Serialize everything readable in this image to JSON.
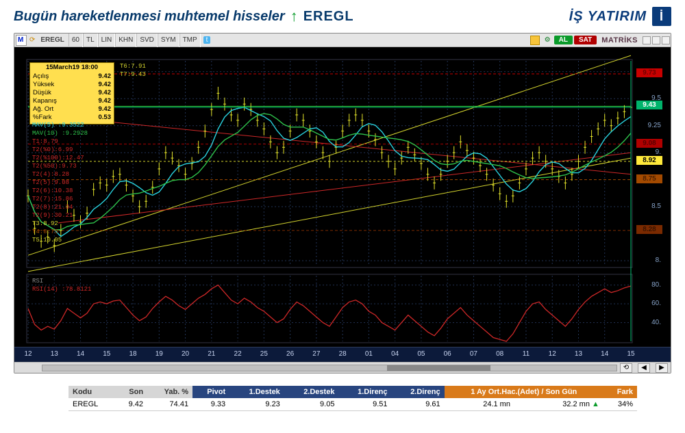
{
  "header": {
    "title": "Bugün hareketlenmesi muhtemel hisseler",
    "ticker": "EREGL",
    "brand": "İŞ YATIRIM"
  },
  "toolbar": {
    "symbol": "EREGL",
    "buttons": [
      "60",
      "TL",
      "LIN",
      "KHN",
      "SVD",
      "SYM",
      "TMP"
    ],
    "al": "AL",
    "sat": "SAT",
    "matriks": "MATRİKS"
  },
  "ohlc": {
    "datetime": "15March19 18:00",
    "rows": [
      [
        "Açılış",
        "9.42"
      ],
      [
        "Yüksek",
        "9.42"
      ],
      [
        "Düşük",
        "9.42"
      ],
      [
        "Kapanış",
        "9.42"
      ],
      [
        "Ağ. Ort",
        "9.42"
      ],
      [
        "%Fark",
        "0.53"
      ]
    ]
  },
  "topIndicators": [
    {
      "text": "T6:7.91",
      "color": "#d6d62e"
    },
    {
      "text": "T7:9.43",
      "color": "#d6d62e"
    }
  ],
  "leftIndicators": [
    {
      "text": "MAV(5)   :9.3522",
      "color": "#29d3e0"
    },
    {
      "text": "MAV(10)  :9.2928",
      "color": "#2ec24b"
    },
    {
      "text": "T1:8.79",
      "color": "#d02828"
    },
    {
      "text": "T2(%0):6.99",
      "color": "#d02828"
    },
    {
      "text": "T2(%100):12.47",
      "color": "#d02828"
    },
    {
      "text": "T2(%50):9.73",
      "color": "#d02828"
    },
    {
      "text": "T2(4):8.28",
      "color": "#d02828"
    },
    {
      "text": "T2(5):9.08",
      "color": "#d02828"
    },
    {
      "text": "T2(6):10.38",
      "color": "#d02828"
    },
    {
      "text": "T2(7):15.86",
      "color": "#d02828"
    },
    {
      "text": "T2(8):21.34",
      "color": "#d02828"
    },
    {
      "text": "T2(9):30.21",
      "color": "#d02828"
    },
    {
      "text": "T3:8.92",
      "color": "#d6d62e"
    },
    {
      "text": "T4:8.75",
      "color": "#a34a00"
    },
    {
      "text": "T5:10.05",
      "color": "#d6d62e"
    }
  ],
  "rsiIndicators": [
    {
      "text": "RSI",
      "color": "#888888"
    },
    {
      "text": "RSI(14)   :78.8121",
      "color": "#d02828"
    }
  ],
  "yTicks": [
    {
      "v": 9.75,
      "label": "9.75"
    },
    {
      "v": 9.5,
      "label": "9.5"
    },
    {
      "v": 9.25,
      "label": "9.25"
    },
    {
      "v": 9.0,
      "label": "9."
    },
    {
      "v": 8.5,
      "label": "8.5"
    },
    {
      "v": 8.0,
      "label": "8."
    }
  ],
  "priceFlags": [
    {
      "v": 9.73,
      "label": "9.73",
      "bg": "#c80000",
      "fg": "#710000"
    },
    {
      "v": 9.43,
      "label": "9.43",
      "bg": "#00b36b",
      "fg": "#ffffff"
    },
    {
      "v": 9.08,
      "label": "9.08",
      "bg": "#b00000",
      "fg": "#5a0000"
    },
    {
      "v": 8.92,
      "label": "8.92",
      "bg": "#ffe93b",
      "fg": "#000000"
    },
    {
      "v": 8.75,
      "label": "8.75",
      "bg": "#a34a00",
      "fg": "#4a1f00"
    },
    {
      "v": 8.28,
      "label": "8.28",
      "bg": "#7a2a00",
      "fg": "#3a1400"
    }
  ],
  "rsiTicks": [
    80,
    60,
    40
  ],
  "dates": [
    "12",
    "13",
    "14",
    "15",
    "18",
    "19",
    "20",
    "21",
    "22",
    "25",
    "26",
    "27",
    "28",
    "01",
    "04",
    "05",
    "06",
    "07",
    "08",
    "11",
    "12",
    "13",
    "14",
    "15"
  ],
  "chart": {
    "ymin": 7.95,
    "ymax": 9.85,
    "priceTop": 20,
    "priceBottom": 320,
    "rsiTop": 334,
    "rsiBottom": 430,
    "rsiMin": 20,
    "rsiMax": 90,
    "plotLeft": 20,
    "plotRight": 900,
    "close": [
      8.6,
      8.3,
      8.18,
      8.22,
      8.14,
      8.28,
      8.5,
      8.42,
      8.36,
      8.44,
      8.66,
      8.72,
      8.7,
      8.78,
      8.8,
      8.7,
      8.6,
      8.5,
      8.55,
      8.68,
      8.85,
      9.0,
      8.95,
      8.88,
      8.8,
      8.9,
      9.05,
      9.2,
      9.4,
      9.55,
      9.45,
      9.35,
      9.3,
      9.45,
      9.4,
      9.3,
      9.22,
      9.1,
      9.0,
      9.05,
      9.2,
      9.35,
      9.3,
      9.2,
      9.1,
      9.0,
      8.92,
      9.05,
      9.2,
      9.3,
      9.35,
      9.3,
      9.2,
      9.12,
      9.0,
      8.92,
      8.85,
      8.95,
      9.05,
      8.98,
      8.9,
      8.8,
      8.72,
      8.8,
      8.92,
      9.0,
      9.1,
      9.02,
      8.95,
      8.88,
      8.8,
      8.7,
      8.62,
      8.55,
      8.6,
      8.72,
      8.85,
      8.95,
      9.0,
      8.92,
      8.85,
      8.78,
      8.72,
      8.8,
      8.92,
      9.05,
      9.15,
      9.22,
      9.3,
      9.25,
      9.32,
      9.38,
      9.42
    ],
    "rsi": [
      55,
      38,
      32,
      36,
      33,
      42,
      55,
      50,
      45,
      50,
      60,
      62,
      60,
      63,
      64,
      56,
      48,
      42,
      46,
      55,
      62,
      68,
      64,
      58,
      54,
      60,
      66,
      70,
      76,
      80,
      72,
      64,
      60,
      66,
      62,
      56,
      52,
      46,
      40,
      44,
      54,
      62,
      58,
      52,
      46,
      40,
      36,
      46,
      56,
      62,
      64,
      60,
      52,
      48,
      40,
      36,
      32,
      40,
      48,
      42,
      36,
      30,
      26,
      34,
      44,
      50,
      56,
      48,
      42,
      36,
      30,
      24,
      22,
      20,
      28,
      40,
      52,
      60,
      62,
      54,
      48,
      42,
      36,
      44,
      54,
      62,
      68,
      72,
      76,
      72,
      74,
      77,
      79
    ],
    "trendLines": [
      {
        "color": "#d6d62e",
        "dash": "",
        "pts": [
          [
            0,
            8.05
          ],
          [
            1,
            9.9
          ]
        ]
      },
      {
        "color": "#d6d62e",
        "dash": "",
        "pts": [
          [
            0,
            7.9
          ],
          [
            1,
            8.95
          ]
        ]
      },
      {
        "color": "#34d23b",
        "dash": "",
        "pts": [
          [
            0,
            9.43
          ],
          [
            1,
            9.43
          ]
        ]
      },
      {
        "color": "#d02828",
        "dash": "",
        "pts": [
          [
            0.02,
            9.35
          ],
          [
            1,
            8.8
          ]
        ]
      },
      {
        "color": "#d02828",
        "dash": "",
        "pts": [
          [
            0.05,
            8.35
          ],
          [
            1,
            9.0
          ]
        ]
      },
      {
        "color": "#d6d62e",
        "dash": "3,3",
        "pts": [
          [
            0,
            8.92
          ],
          [
            1,
            8.92
          ]
        ]
      },
      {
        "color": "#a34a00",
        "dash": "4,3",
        "pts": [
          [
            0,
            8.75
          ],
          [
            1,
            8.75
          ]
        ]
      },
      {
        "color": "#7a2a00",
        "dash": "4,3",
        "pts": [
          [
            0,
            8.28
          ],
          [
            1,
            8.28
          ]
        ]
      },
      {
        "color": "#c80000",
        "dash": "4,3",
        "pts": [
          [
            0,
            9.73
          ],
          [
            1,
            9.73
          ]
        ]
      },
      {
        "color": "#b00000",
        "dash": "4,3",
        "pts": [
          [
            0,
            9.08
          ],
          [
            1,
            9.08
          ]
        ]
      }
    ],
    "colors": {
      "candle": "#e6e62a",
      "mav5": "#29d3e0",
      "mav10": "#2ec24b",
      "rsi": "#d02828",
      "grid": "#223355",
      "cursor": "#00c070"
    }
  },
  "summary": {
    "headers": {
      "kodu": "Kodu",
      "son": "Son",
      "yab": "Yab. %",
      "pivot": "Pivot",
      "d1": "1.Destek",
      "d2": "2.Destek",
      "r1": "1.Direnç",
      "r2": "2.Direnç",
      "hacim": "1 Ay Ort.Hac.(Adet)  /  Son Gün",
      "fark": "Fark"
    },
    "row": {
      "kodu": "EREGL",
      "son": "9.42",
      "yab": "74.41",
      "pivot": "9.33",
      "d1": "9.23",
      "d2": "9.05",
      "r1": "9.51",
      "r2": "9.61",
      "h1": "24.1 mn",
      "h2": "32.2 mn",
      "fark": "34%"
    }
  }
}
